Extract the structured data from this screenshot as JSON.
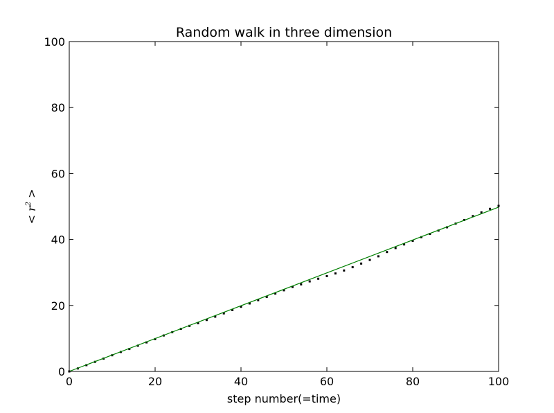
{
  "chart_data": {
    "type": "line",
    "title": "Random walk in three dimension",
    "xlabel": "step number(=time)",
    "ylabel_pre": "<",
    "ylabel_var": "r",
    "ylabel_exp": "2",
    "ylabel_post": ">",
    "xlim": [
      0,
      100
    ],
    "ylim": [
      0,
      100
    ],
    "xticks": [
      0,
      20,
      40,
      60,
      80,
      100
    ],
    "yticks": [
      0,
      20,
      40,
      60,
      80,
      100
    ],
    "grid": false,
    "series": [
      {
        "style": "dots",
        "color": "#000000",
        "points": [
          [
            0,
            0
          ],
          [
            2,
            0.9
          ],
          [
            4,
            1.9
          ],
          [
            6,
            2.9
          ],
          [
            8,
            3.9
          ],
          [
            10,
            4.9
          ],
          [
            12,
            5.9
          ],
          [
            14,
            6.8
          ],
          [
            16,
            7.8
          ],
          [
            18,
            8.8
          ],
          [
            20,
            9.8
          ],
          [
            22,
            10.9
          ],
          [
            24,
            11.9
          ],
          [
            26,
            12.9
          ],
          [
            28,
            13.8
          ],
          [
            30,
            14.6
          ],
          [
            32,
            15.6
          ],
          [
            34,
            16.6
          ],
          [
            36,
            17.6
          ],
          [
            38,
            18.6
          ],
          [
            40,
            19.6
          ],
          [
            42,
            20.6
          ],
          [
            44,
            21.6
          ],
          [
            46,
            22.6
          ],
          [
            48,
            23.6
          ],
          [
            50,
            24.6
          ],
          [
            52,
            25.6
          ],
          [
            54,
            26.4
          ],
          [
            56,
            27.3
          ],
          [
            58,
            28.1
          ],
          [
            60,
            28.9
          ],
          [
            62,
            29.7
          ],
          [
            64,
            30.6
          ],
          [
            66,
            31.6
          ],
          [
            68,
            32.7
          ],
          [
            70,
            33.8
          ],
          [
            72,
            34.9
          ],
          [
            74,
            36.2
          ],
          [
            76,
            37.4
          ],
          [
            78,
            38.5
          ],
          [
            80,
            39.6
          ],
          [
            82,
            40.7
          ],
          [
            84,
            41.7
          ],
          [
            86,
            42.7
          ],
          [
            88,
            43.7
          ],
          [
            90,
            44.8
          ],
          [
            92,
            45.9
          ],
          [
            94,
            47.1
          ],
          [
            96,
            48.2
          ],
          [
            98,
            49.3
          ],
          [
            100,
            50.2
          ]
        ]
      },
      {
        "style": "line",
        "color": "#008000",
        "points": [
          [
            0,
            0
          ],
          [
            100,
            49.8
          ]
        ]
      }
    ]
  }
}
